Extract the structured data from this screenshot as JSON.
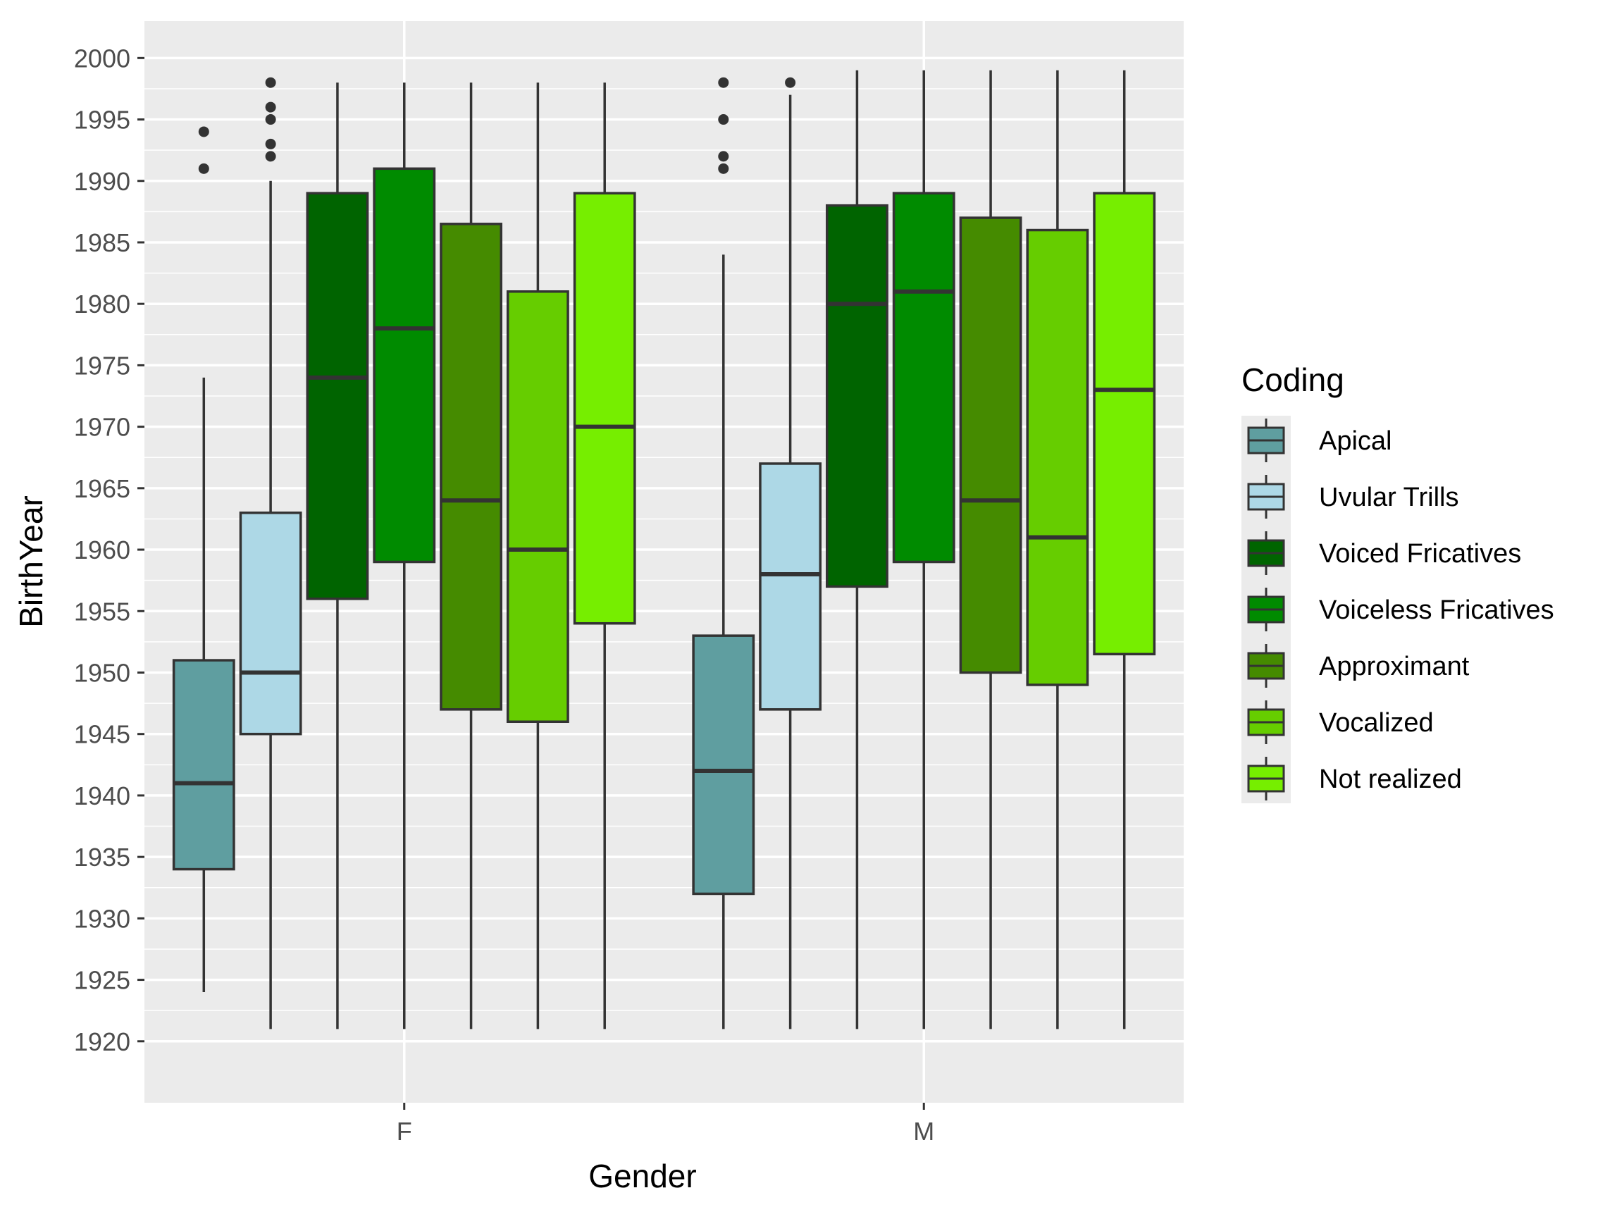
{
  "chart_data": {
    "type": "boxplot",
    "xlabel": "Gender",
    "ylabel": "BirthYear",
    "ylim": [
      1915,
      2003
    ],
    "y_ticks": [
      1920,
      1925,
      1930,
      1935,
      1940,
      1945,
      1950,
      1955,
      1960,
      1965,
      1970,
      1975,
      1980,
      1985,
      1990,
      1995,
      2000
    ],
    "categories": [
      "F",
      "M"
    ],
    "legend": {
      "title": "Coding",
      "position": "right"
    },
    "grid": true,
    "series": [
      {
        "name": "Apical",
        "color": "#5f9ea0",
        "boxes": [
          {
            "whisker_low": 1924,
            "q1": 1934,
            "median": 1941,
            "q3": 1951,
            "whisker_high": 1974,
            "outliers": [
              1991,
              1994
            ]
          },
          {
            "whisker_low": 1921,
            "q1": 1932,
            "median": 1942,
            "q3": 1953,
            "whisker_high": 1984,
            "outliers": [
              1991,
              1992,
              1995,
              1998
            ]
          }
        ]
      },
      {
        "name": "Uvular Trills",
        "color": "#add8e6",
        "boxes": [
          {
            "whisker_low": 1921,
            "q1": 1945,
            "median": 1950,
            "q3": 1963,
            "whisker_high": 1990,
            "outliers": [
              1992,
              1993,
              1995,
              1996,
              1998
            ]
          },
          {
            "whisker_low": 1921,
            "q1": 1947,
            "median": 1958,
            "q3": 1967,
            "whisker_high": 1997,
            "outliers": [
              1998
            ]
          }
        ]
      },
      {
        "name": "Voiced Fricatives",
        "color": "#006400",
        "boxes": [
          {
            "whisker_low": 1921,
            "q1": 1956,
            "median": 1974,
            "q3": 1989,
            "whisker_high": 1998,
            "outliers": []
          },
          {
            "whisker_low": 1921,
            "q1": 1957,
            "median": 1980,
            "q3": 1988,
            "whisker_high": 1999,
            "outliers": []
          }
        ]
      },
      {
        "name": "Voiceless Fricatives",
        "color": "#008b00",
        "boxes": [
          {
            "whisker_low": 1921,
            "q1": 1959,
            "median": 1978,
            "q3": 1991,
            "whisker_high": 1998,
            "outliers": []
          },
          {
            "whisker_low": 1921,
            "q1": 1959,
            "median": 1981,
            "q3": 1989,
            "whisker_high": 1999,
            "outliers": []
          }
        ]
      },
      {
        "name": "Approximant",
        "color": "#458b00",
        "boxes": [
          {
            "whisker_low": 1921,
            "q1": 1947,
            "median": 1964,
            "q3": 1986.5,
            "whisker_high": 1998,
            "outliers": []
          },
          {
            "whisker_low": 1921,
            "q1": 1950,
            "median": 1964,
            "q3": 1987,
            "whisker_high": 1999,
            "outliers": []
          }
        ]
      },
      {
        "name": "Vocalized",
        "color": "#66cd00",
        "boxes": [
          {
            "whisker_low": 1921,
            "q1": 1946,
            "median": 1960,
            "q3": 1981,
            "whisker_high": 1998,
            "outliers": []
          },
          {
            "whisker_low": 1921,
            "q1": 1949,
            "median": 1961,
            "q3": 1986,
            "whisker_high": 1999,
            "outliers": []
          }
        ]
      },
      {
        "name": "Not realized",
        "color": "#76ee00",
        "boxes": [
          {
            "whisker_low": 1921,
            "q1": 1954,
            "median": 1970,
            "q3": 1989,
            "whisker_high": 1998,
            "outliers": []
          },
          {
            "whisker_low": 1921,
            "q1": 1951.5,
            "median": 1973,
            "q3": 1989,
            "whisker_high": 1999,
            "outliers": []
          }
        ]
      }
    ]
  }
}
